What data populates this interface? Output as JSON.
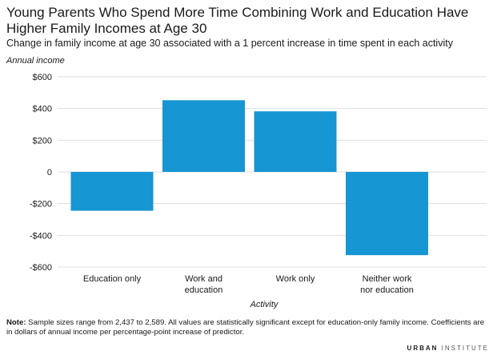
{
  "title": "Young Parents Who Spend More Time Combining Work and Education Have Higher Family Incomes at Age 30",
  "subtitle": "Change in family income at age 30 associated with a 1 percent increase in time spent in each activity",
  "note_label": "Note:",
  "note_text": " Sample sizes range from 2,437 to 2,589. All values are statistically significant except for education-only family income. Coefficients are in dollars of annual income per percentage-point increase of predictor.",
  "brand": {
    "part1": "URBAN",
    "part2": " INSTITUTE"
  },
  "colors": {
    "bar": "#1696d2",
    "grid": "#dedede",
    "text": "#1a1a1a"
  },
  "chart_data": {
    "type": "bar",
    "title": "Young Parents Who Spend More Time Combining Work and Education Have Higher Family Incomes at Age 30",
    "ylabel": "Annual income",
    "xlabel": "Activity",
    "categories": [
      [
        "Education only"
      ],
      [
        "Work and",
        "education"
      ],
      [
        "Work only"
      ],
      [
        "Neither work",
        "nor education"
      ]
    ],
    "values": [
      -245,
      452,
      382,
      -525
    ],
    "ylim": [
      -600,
      600
    ],
    "yticks": [
      600,
      400,
      200,
      0,
      -200,
      -400,
      -600
    ],
    "ytick_labels": [
      "$600",
      "$400",
      "$200",
      "0",
      "-$200",
      "-$400",
      "-$600"
    ],
    "grid": true
  }
}
